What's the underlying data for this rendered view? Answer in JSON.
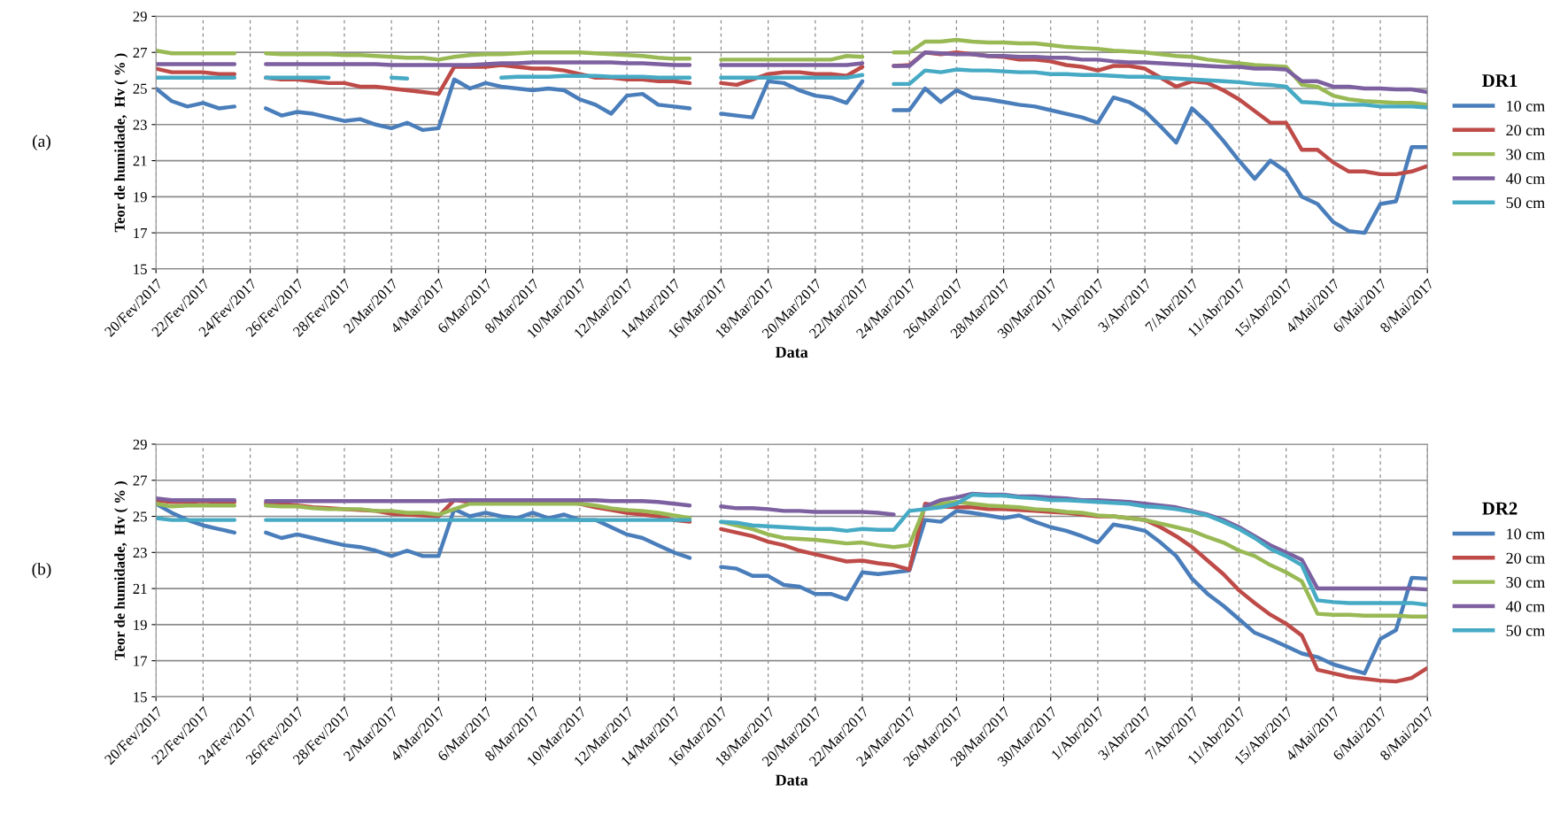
{
  "chart_data": [
    {
      "type": "line",
      "xlabel": "Data",
      "ylabel": "Teor de humidade,  Hv ( % )",
      "legend_title": "DR1",
      "annotations": [
        "(a)"
      ],
      "categories": [
        "20/Fev/2017",
        null,
        null,
        "22/Fev/2017",
        null,
        null,
        "24/Fev/2017",
        null,
        null,
        "26/Fev/2017",
        null,
        null,
        "28/Fev/2017",
        null,
        null,
        "2/Mar/2017",
        null,
        null,
        "4/Mar/2017",
        null,
        null,
        "6/Mar/2017",
        null,
        null,
        "8/Mar/2017",
        null,
        null,
        "10/Mar/2017",
        null,
        null,
        "12/Mar/2017",
        null,
        null,
        "14/Mar/2017",
        null,
        null,
        "16/Mar/2017",
        null,
        null,
        "18/Mar/2017",
        null,
        null,
        "20/Mar/2017",
        null,
        null,
        "22/Mar/2017",
        null,
        null,
        "24/Mar/2017",
        null,
        null,
        "26/Mar/2017",
        null,
        null,
        "28/Mar/2017",
        null,
        null,
        "30/Mar/2017",
        null,
        null,
        "1/Abr/2017",
        null,
        null,
        "3/Abr/2017",
        null,
        null,
        "7/Abr/2017",
        null,
        null,
        "11/Abr/2017",
        null,
        null,
        "15/Abr/2017",
        null,
        null,
        "4/Mai/2017",
        null,
        null,
        "6/Mai/2017",
        null,
        null,
        "8/Mai/2017"
      ],
      "ylim": [
        15,
        29
      ],
      "yticks": [
        15,
        17,
        19,
        21,
        23,
        25,
        27,
        29
      ],
      "grid": true,
      "legend": "right",
      "series": [
        {
          "name": "10 cm",
          "color": "#4a7ebb",
          "values": [
            25.0,
            24.3,
            24.0,
            24.2,
            23.9,
            24.0,
            null,
            23.9,
            23.5,
            23.7,
            23.6,
            23.4,
            23.2,
            23.3,
            23.0,
            22.8,
            23.1,
            22.7,
            22.8,
            25.5,
            25.0,
            25.3,
            25.1,
            25.0,
            24.9,
            25.0,
            24.9,
            24.4,
            24.1,
            23.6,
            24.6,
            24.7,
            24.1,
            24.0,
            23.9,
            null,
            23.6,
            23.5,
            23.4,
            25.4,
            25.3,
            24.9,
            24.6,
            24.5,
            24.2,
            25.4,
            null,
            23.8,
            23.8,
            25.0,
            24.25,
            24.9,
            24.5,
            24.4,
            24.25,
            24.1,
            24.0,
            23.8,
            23.6,
            23.4,
            23.1,
            24.5,
            24.25,
            23.75,
            22.9,
            22.0,
            23.9,
            23.1,
            22.1,
            21.0,
            20.0,
            21.0,
            20.4,
            19.0,
            18.6,
            17.6,
            17.1,
            17.0,
            18.6,
            18.75,
            21.75,
            21.75
          ]
        },
        {
          "name": "20 cm",
          "color": "#be4b48",
          "values": [
            26.1,
            25.9,
            25.9,
            25.9,
            25.8,
            25.8,
            null,
            25.6,
            25.5,
            25.5,
            25.4,
            25.3,
            25.3,
            25.1,
            25.1,
            25.0,
            24.9,
            24.8,
            24.7,
            26.2,
            26.2,
            26.2,
            26.3,
            26.2,
            26.1,
            26.1,
            26.0,
            25.8,
            25.6,
            25.6,
            25.5,
            25.5,
            25.4,
            25.4,
            25.3,
            null,
            25.3,
            25.2,
            25.5,
            25.8,
            25.9,
            25.9,
            25.8,
            25.8,
            25.7,
            26.2,
            null,
            26.25,
            26.3,
            27.0,
            26.9,
            27.0,
            26.9,
            26.8,
            26.75,
            26.6,
            26.6,
            26.5,
            26.3,
            26.2,
            26.0,
            26.25,
            26.25,
            26.1,
            25.6,
            25.1,
            25.4,
            25.3,
            24.9,
            24.4,
            23.75,
            23.1,
            23.1,
            21.6,
            21.6,
            20.9,
            20.4,
            20.4,
            20.25,
            20.25,
            20.4,
            20.7
          ]
        },
        {
          "name": "30 cm",
          "color": "#98b954",
          "values": [
            27.1,
            26.95,
            26.95,
            26.95,
            26.95,
            26.95,
            null,
            26.95,
            26.9,
            26.9,
            26.9,
            26.9,
            26.85,
            26.85,
            26.8,
            26.75,
            26.7,
            26.7,
            26.6,
            26.75,
            26.85,
            26.9,
            26.9,
            26.95,
            27.0,
            27.0,
            27.0,
            27.0,
            26.95,
            26.9,
            26.85,
            26.8,
            26.7,
            26.65,
            26.65,
            null,
            26.6,
            26.6,
            26.6,
            26.6,
            26.6,
            26.6,
            26.6,
            26.6,
            26.8,
            26.75,
            null,
            27.0,
            27.0,
            27.6,
            27.6,
            27.7,
            27.6,
            27.55,
            27.55,
            27.5,
            27.5,
            27.4,
            27.3,
            27.25,
            27.2,
            27.1,
            27.05,
            27.0,
            26.9,
            26.8,
            26.75,
            26.6,
            26.5,
            26.4,
            26.3,
            26.25,
            26.2,
            25.2,
            25.1,
            24.6,
            24.4,
            24.3,
            24.25,
            24.2,
            24.2,
            24.1
          ]
        },
        {
          "name": "40 cm",
          "color": "#7d60a0",
          "values": [
            26.35,
            26.35,
            26.35,
            26.35,
            26.35,
            26.35,
            null,
            26.35,
            26.35,
            26.35,
            26.35,
            26.35,
            26.35,
            26.35,
            26.35,
            26.3,
            26.3,
            26.3,
            26.3,
            26.3,
            26.3,
            26.35,
            26.4,
            26.4,
            26.45,
            26.45,
            26.45,
            26.45,
            26.45,
            26.45,
            26.4,
            26.4,
            26.35,
            26.3,
            26.3,
            null,
            26.3,
            26.3,
            26.3,
            26.3,
            26.3,
            26.3,
            26.3,
            26.3,
            26.3,
            26.4,
            null,
            26.25,
            26.25,
            27.0,
            26.95,
            26.9,
            26.9,
            26.8,
            26.8,
            26.75,
            26.75,
            26.7,
            26.7,
            26.6,
            26.6,
            26.5,
            26.45,
            26.45,
            26.4,
            26.35,
            26.3,
            26.25,
            26.2,
            26.2,
            26.1,
            26.1,
            26.05,
            25.4,
            25.4,
            25.1,
            25.1,
            25.0,
            25.0,
            24.95,
            24.95,
            24.8
          ]
        },
        {
          "name": "50 cm",
          "color": "#46aac5",
          "values": [
            25.6,
            25.6,
            25.6,
            25.6,
            25.6,
            25.6,
            null,
            25.6,
            25.6,
            25.6,
            25.6,
            25.6,
            null,
            null,
            null,
            25.6,
            25.55,
            null,
            null,
            null,
            null,
            null,
            25.6,
            25.65,
            25.65,
            25.65,
            25.7,
            25.7,
            25.7,
            25.65,
            25.65,
            25.65,
            25.6,
            25.6,
            25.6,
            null,
            25.6,
            25.6,
            25.6,
            25.6,
            25.6,
            25.6,
            25.6,
            25.6,
            25.6,
            25.75,
            null,
            25.25,
            25.25,
            26.0,
            25.9,
            26.05,
            26.0,
            26.0,
            25.95,
            25.9,
            25.9,
            25.8,
            25.8,
            25.75,
            25.75,
            25.7,
            25.65,
            25.65,
            25.6,
            25.55,
            25.5,
            25.45,
            25.4,
            25.35,
            25.25,
            25.2,
            25.1,
            24.25,
            24.2,
            24.1,
            24.1,
            24.1,
            24.0,
            24.0,
            24.0,
            23.95
          ]
        }
      ]
    },
    {
      "type": "line",
      "xlabel": "Data",
      "ylabel": "Teor de humidade,  Hv ( % )",
      "legend_title": "DR2",
      "annotations": [
        "(b)"
      ],
      "categories": [
        "20/Fev/2017",
        null,
        null,
        "22/Fev/2017",
        null,
        null,
        "24/Fev/2017",
        null,
        null,
        "26/Fev/2017",
        null,
        null,
        "28/Fev/2017",
        null,
        null,
        "2/Mar/2017",
        null,
        null,
        "4/Mar/2017",
        null,
        null,
        "6/Mar/2017",
        null,
        null,
        "8/Mar/2017",
        null,
        null,
        "10/Mar/2017",
        null,
        null,
        "12/Mar/2017",
        null,
        null,
        "14/Mar/2017",
        null,
        null,
        "16/Mar/2017",
        null,
        null,
        "18/Mar/2017",
        null,
        null,
        "20/Mar/2017",
        null,
        null,
        "22/Mar/2017",
        null,
        null,
        "24/Mar/2017",
        null,
        null,
        "26/Mar/2017",
        null,
        null,
        "28/Mar/2017",
        null,
        null,
        "30/Mar/2017",
        null,
        null,
        "1/Abr/2017",
        null,
        null,
        "3/Abr/2017",
        null,
        null,
        "7/Abr/2017",
        null,
        null,
        "11/Abr/2017",
        null,
        null,
        "15/Abr/2017",
        null,
        null,
        "4/Mai/2017",
        null,
        null,
        "6/Mai/2017",
        null,
        null,
        "8/Mai/2017"
      ],
      "ylim": [
        15,
        29
      ],
      "yticks": [
        15,
        17,
        19,
        21,
        23,
        25,
        27,
        29
      ],
      "grid": true,
      "legend": "right",
      "series": [
        {
          "name": "10 cm",
          "color": "#4a7ebb",
          "values": [
            25.7,
            25.2,
            24.8,
            24.5,
            24.3,
            24.1,
            null,
            24.1,
            23.8,
            24.0,
            23.8,
            23.6,
            23.4,
            23.3,
            23.1,
            22.8,
            23.1,
            22.8,
            22.8,
            25.4,
            25.0,
            25.2,
            25.0,
            24.9,
            25.2,
            24.9,
            25.1,
            24.8,
            24.8,
            24.4,
            24.0,
            23.8,
            23.4,
            23.0,
            22.7,
            null,
            22.2,
            22.1,
            21.7,
            21.7,
            21.2,
            21.1,
            20.7,
            20.7,
            20.4,
            21.9,
            21.8,
            21.9,
            22.0,
            24.8,
            24.7,
            25.3,
            25.2,
            25.05,
            24.9,
            25.05,
            24.7,
            24.4,
            24.2,
            23.9,
            23.55,
            24.55,
            24.4,
            24.2,
            23.55,
            22.8,
            21.55,
            20.7,
            20.05,
            19.3,
            18.55,
            18.2,
            17.8,
            17.4,
            17.2,
            16.8,
            16.55,
            16.3,
            18.2,
            18.7,
            21.6,
            21.55
          ]
        },
        {
          "name": "20 cm",
          "color": "#be4b48",
          "values": [
            25.9,
            25.8,
            25.8,
            25.85,
            25.8,
            25.8,
            null,
            25.7,
            25.7,
            25.6,
            25.5,
            25.45,
            25.4,
            25.35,
            25.3,
            25.15,
            25.1,
            25.05,
            25.0,
            25.9,
            25.8,
            25.8,
            25.8,
            25.8,
            25.8,
            25.8,
            25.8,
            25.7,
            25.5,
            25.35,
            25.2,
            25.1,
            25.0,
            24.8,
            24.7,
            null,
            24.3,
            24.1,
            23.9,
            23.6,
            23.4,
            23.1,
            22.9,
            22.7,
            22.5,
            22.55,
            22.4,
            22.3,
            22.05,
            25.7,
            25.55,
            25.5,
            25.5,
            25.4,
            25.4,
            25.35,
            25.3,
            25.25,
            25.2,
            25.1,
            25.0,
            25.0,
            24.9,
            24.8,
            24.4,
            23.9,
            23.3,
            22.55,
            21.8,
            20.9,
            20.2,
            19.55,
            19.05,
            18.4,
            16.5,
            16.3,
            16.1,
            16.0,
            15.9,
            15.85,
            16.05,
            16.6
          ]
        },
        {
          "name": "30 cm",
          "color": "#98b954",
          "values": [
            25.7,
            25.55,
            25.6,
            25.6,
            25.6,
            25.6,
            null,
            25.6,
            25.55,
            25.55,
            25.45,
            25.4,
            25.4,
            25.4,
            25.3,
            25.3,
            25.2,
            25.2,
            25.1,
            25.4,
            25.7,
            25.7,
            25.7,
            25.7,
            25.7,
            25.7,
            25.7,
            25.7,
            25.6,
            25.45,
            25.35,
            25.3,
            25.2,
            25.05,
            24.9,
            null,
            24.7,
            24.5,
            24.3,
            24.0,
            23.8,
            23.75,
            23.7,
            23.6,
            23.5,
            23.55,
            23.4,
            23.3,
            23.4,
            25.55,
            25.7,
            25.8,
            25.7,
            25.6,
            25.55,
            25.5,
            25.4,
            25.35,
            25.25,
            25.2,
            25.05,
            25.0,
            24.9,
            24.8,
            24.6,
            24.4,
            24.2,
            23.85,
            23.55,
            23.1,
            22.8,
            22.3,
            21.9,
            21.4,
            19.6,
            19.55,
            19.55,
            19.5,
            19.5,
            19.5,
            19.45,
            19.45
          ]
        },
        {
          "name": "40 cm",
          "color": "#7d60a0",
          "values": [
            26.0,
            25.9,
            25.9,
            25.9,
            25.9,
            25.9,
            null,
            25.85,
            25.85,
            25.85,
            25.85,
            25.85,
            25.85,
            25.85,
            25.85,
            25.85,
            25.85,
            25.85,
            25.85,
            25.9,
            25.9,
            25.9,
            25.9,
            25.9,
            25.9,
            25.9,
            25.9,
            25.9,
            25.9,
            25.85,
            25.85,
            25.85,
            25.8,
            25.7,
            25.6,
            null,
            25.55,
            25.45,
            25.45,
            25.4,
            25.3,
            25.3,
            25.25,
            25.25,
            25.25,
            25.25,
            25.2,
            25.1,
            null,
            25.55,
            25.9,
            26.05,
            26.25,
            26.2,
            26.2,
            26.1,
            26.1,
            26.05,
            26.0,
            25.9,
            25.9,
            25.85,
            25.8,
            25.7,
            25.6,
            25.5,
            25.3,
            25.1,
            24.8,
            24.4,
            23.9,
            23.4,
            23.0,
            22.6,
            21.0,
            21.0,
            21.0,
            21.0,
            21.0,
            21.0,
            21.0,
            20.95
          ]
        },
        {
          "name": "50 cm",
          "color": "#46aac5",
          "values": [
            24.9,
            24.8,
            24.8,
            24.8,
            24.8,
            24.8,
            null,
            24.8,
            24.8,
            24.8,
            24.8,
            24.8,
            24.8,
            24.8,
            24.8,
            24.8,
            24.8,
            24.8,
            24.8,
            24.8,
            24.8,
            24.8,
            24.8,
            24.8,
            24.8,
            24.8,
            24.8,
            24.8,
            24.8,
            24.8,
            24.8,
            24.8,
            24.8,
            24.8,
            24.8,
            null,
            24.7,
            24.65,
            24.5,
            24.45,
            24.4,
            24.35,
            24.3,
            24.3,
            24.2,
            24.3,
            24.25,
            24.25,
            25.3,
            25.4,
            25.5,
            25.7,
            26.2,
            26.15,
            26.15,
            26.05,
            26.0,
            25.9,
            25.9,
            25.85,
            25.8,
            25.75,
            25.7,
            25.55,
            25.5,
            25.4,
            25.25,
            25.05,
            24.7,
            24.3,
            23.8,
            23.2,
            22.8,
            22.3,
            20.35,
            20.25,
            20.2,
            20.2,
            20.2,
            20.2,
            20.2,
            20.1
          ]
        }
      ]
    }
  ]
}
